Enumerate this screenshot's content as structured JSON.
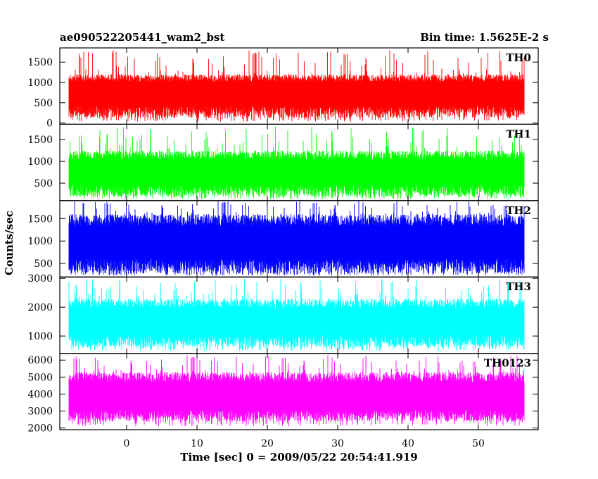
{
  "chart_data": {
    "type": "line",
    "title": "ae090522205441_wam2_bst",
    "subtitle": "Bin time: 1.5625E-2 s",
    "xlabel": "Time [sec] 0 = 2009/05/22 20:54:41.919",
    "ylabel": "Counts/sec",
    "xlim": [
      -9.5,
      58.5
    ],
    "x_ticks": [
      0,
      10,
      20,
      30,
      40,
      50
    ],
    "x_data_range": [
      -8.2,
      56.5
    ],
    "grid": false,
    "legend": "none",
    "panels": [
      {
        "name": "TH0",
        "color": "#ff0000",
        "ylim": [
          -30,
          1850
        ],
        "y_ticks": [
          0,
          500,
          1000,
          1500
        ],
        "baseline": 130,
        "mean": 780,
        "typical_max": 1200,
        "peak_max": 1800
      },
      {
        "name": "TH1",
        "color": "#00ff00",
        "ylim": [
          100,
          1850
        ],
        "y_ticks": [
          500,
          1000,
          1500
        ],
        "baseline": 200,
        "mean": 780,
        "typical_max": 1250,
        "peak_max": 1800
      },
      {
        "name": "TH2",
        "color": "#0000ff",
        "ylim": [
          200,
          1900
        ],
        "y_ticks": [
          500,
          1000,
          1500
        ],
        "baseline": 280,
        "mean": 1000,
        "typical_max": 1600,
        "peak_max": 1900
      },
      {
        "name": "TH3",
        "color": "#00ffff",
        "ylim": [
          400,
          3050
        ],
        "y_ticks": [
          1000,
          2000,
          3000
        ],
        "baseline": 620,
        "mean": 1550,
        "typical_max": 2300,
        "peak_max": 3000
      },
      {
        "name": "TH0123",
        "color": "#ff00ff",
        "ylim": [
          1900,
          6400
        ],
        "y_ticks": [
          2000,
          3000,
          4000,
          5000,
          6000
        ],
        "baseline": 2400,
        "mean": 3900,
        "typical_max": 5300,
        "peak_max": 6300
      }
    ]
  }
}
